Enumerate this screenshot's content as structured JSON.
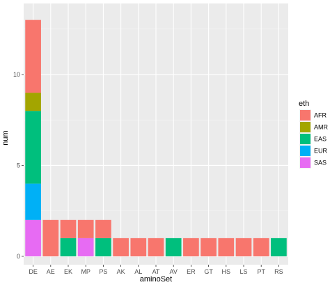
{
  "chart_data": {
    "type": "bar",
    "stacked": true,
    "categories": [
      "DE",
      "AE",
      "EK",
      "MP",
      "PS",
      "AK",
      "AL",
      "AT",
      "AV",
      "ER",
      "GT",
      "HS",
      "LS",
      "PT",
      "RS"
    ],
    "series": [
      {
        "name": "AFR",
        "color": "#F8766D",
        "values": [
          4,
          2,
          1,
          1,
          1,
          1,
          1,
          1,
          0,
          1,
          1,
          1,
          1,
          1,
          0
        ]
      },
      {
        "name": "AMR",
        "color": "#A3A500",
        "values": [
          1,
          0,
          0,
          0,
          0,
          0,
          0,
          0,
          0,
          0,
          0,
          0,
          0,
          0,
          0
        ]
      },
      {
        "name": "EAS",
        "color": "#00BF7D",
        "values": [
          4,
          0,
          1,
          0,
          1,
          0,
          0,
          0,
          1,
          0,
          0,
          0,
          0,
          0,
          1
        ]
      },
      {
        "name": "EUR",
        "color": "#00B0F6",
        "values": [
          2,
          0,
          0,
          0,
          0,
          0,
          0,
          0,
          0,
          0,
          0,
          0,
          0,
          0,
          0
        ]
      },
      {
        "name": "SAS",
        "color": "#E76BF3",
        "values": [
          2,
          0,
          0,
          1,
          0,
          0,
          0,
          0,
          0,
          0,
          0,
          0,
          0,
          0,
          0
        ]
      }
    ],
    "stack_order_top_to_bottom": [
      "AFR",
      "AMR",
      "EAS",
      "EUR",
      "SAS"
    ],
    "xlabel": "aminoSet",
    "ylabel": "num",
    "ylim": [
      0,
      13.6
    ],
    "yticks": [
      0,
      5,
      10
    ],
    "grid": true,
    "legend": {
      "title": "eth",
      "placement": "right"
    }
  }
}
